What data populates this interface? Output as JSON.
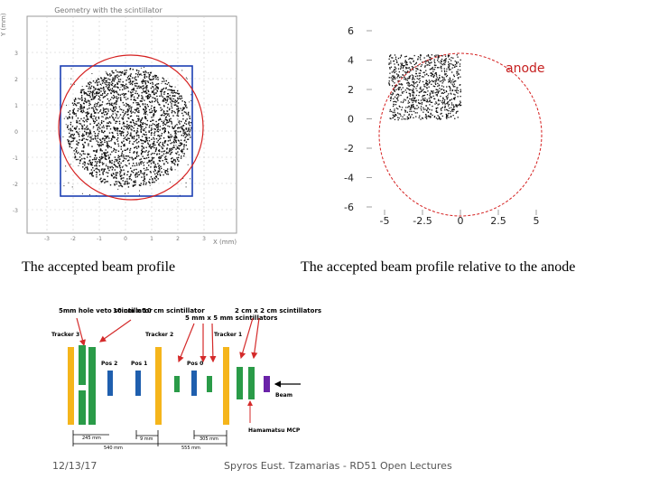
{
  "plot_left": {
    "title": "Geometry with the scintillator",
    "ylabel": "Y (mm)",
    "xlabel": "X (mm)",
    "yticks": [
      "3",
      "2",
      "1",
      "0",
      "-1",
      "-2",
      "-3"
    ],
    "xticks": [
      "-3",
      "-2",
      "-1",
      "0",
      "1",
      "2",
      "3"
    ]
  },
  "plot_right": {
    "anode_label": "anode",
    "yticks": [
      "6",
      "4",
      "2",
      "0",
      "-2",
      "-4",
      "-6"
    ],
    "xticks": [
      "-5",
      "-2.5",
      "0",
      "2.5",
      "5"
    ]
  },
  "captions": {
    "left": "The accepted beam profile",
    "right": "The accepted beam profile relative to the anode"
  },
  "diagram": {
    "labels": {
      "veto": "5mm hole veto scintillator",
      "big": "10 cm x 10 cm scintillator",
      "small": "5 mm x 5 mm scintillators",
      "medium": "2 cm x 2 cm scintillators",
      "tracker3": "Tracker 3",
      "tracker2": "Tracker 2",
      "tracker1": "Tracker 1",
      "pos2": "Pos 2",
      "pos1": "Pos 1",
      "pos0": "Pos 0",
      "beam": "Beam",
      "mcp": "Hamamatsu MCP",
      "d245": "245 mm",
      "d540": "540 mm",
      "d9": "9 mm",
      "d305": "305 mm",
      "d555": "555 mm"
    }
  },
  "footer": {
    "date": "12/13/17",
    "credit": "Spyros Eust. Tzamarias - RD51 Open Lectures"
  },
  "colors": {
    "box": "#1c3fb3",
    "circle": "#d52020",
    "tracker": "#f5b51b",
    "scint": "#2a9b48",
    "pos": "#1f5fae",
    "mcp": "#6a22a8",
    "arrow": "#d42a2a"
  }
}
